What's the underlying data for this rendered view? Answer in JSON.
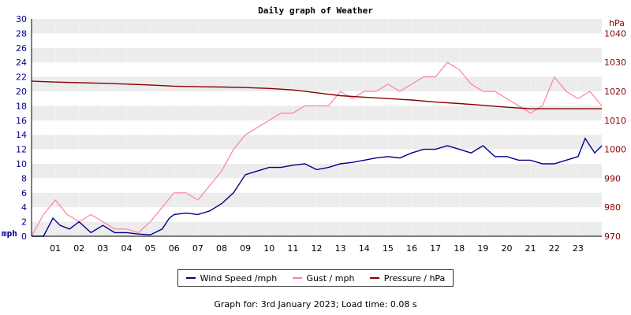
{
  "chart_data": {
    "type": "line",
    "title": "Daily graph of Weather",
    "left_axis": {
      "unit": "mph",
      "ylim": [
        0,
        30
      ],
      "ticks": [
        0,
        2,
        4,
        6,
        8,
        10,
        12,
        14,
        16,
        18,
        20,
        22,
        24,
        26,
        28,
        30
      ]
    },
    "right_axis": {
      "unit": "hPa",
      "ylim": [
        970,
        1045
      ],
      "ticks": [
        970,
        980,
        990,
        1000,
        1010,
        1020,
        1030,
        1040
      ]
    },
    "x_axis": {
      "xlim": [
        0,
        24
      ],
      "tick_labels": [
        "01",
        "02",
        "03",
        "04",
        "05",
        "06",
        "07",
        "08",
        "09",
        "10",
        "11",
        "12",
        "13",
        "14",
        "15",
        "16",
        "17",
        "18",
        "19",
        "20",
        "21",
        "22",
        "23"
      ]
    },
    "grid": true,
    "legend_position": "bottom",
    "series": [
      {
        "name": "Wind Speed /mph",
        "axis": "left",
        "color": "#00008b",
        "x": [
          0,
          0.5,
          0.9,
          1.2,
          1.6,
          2.0,
          2.5,
          3.0,
          3.5,
          4.0,
          4.5,
          5.0,
          5.5,
          5.8,
          6.0,
          6.5,
          7.0,
          7.5,
          8.0,
          8.5,
          9.0,
          9.5,
          10.0,
          10.5,
          11.0,
          11.5,
          12.0,
          12.5,
          13.0,
          13.5,
          14.0,
          14.5,
          15.0,
          15.5,
          16.0,
          16.5,
          17.0,
          17.5,
          18.0,
          18.5,
          19.0,
          19.5,
          20.0,
          20.5,
          21.0,
          21.5,
          22.0,
          22.5,
          23.0,
          23.3,
          23.7,
          24.0
        ],
        "y": [
          0,
          0,
          2.5,
          1.5,
          1.0,
          2.0,
          0.5,
          1.5,
          0.5,
          0.5,
          0.3,
          0.2,
          1.0,
          2.5,
          3.0,
          3.2,
          3.0,
          3.5,
          4.5,
          6.0,
          8.5,
          9.0,
          9.5,
          9.5,
          9.8,
          10.0,
          9.2,
          9.5,
          10.0,
          10.2,
          10.5,
          10.8,
          11.0,
          10.8,
          11.5,
          12.0,
          12.0,
          12.5,
          12.0,
          11.5,
          12.5,
          11.0,
          11.0,
          10.5,
          10.5,
          10.0,
          10.0,
          10.5,
          11.0,
          13.5,
          11.5,
          12.5
        ]
      },
      {
        "name": "Gust / mph",
        "axis": "left",
        "color": "#ff7fa0",
        "x": [
          0,
          0.5,
          1.0,
          1.5,
          2.0,
          2.5,
          3.0,
          3.5,
          4.0,
          4.5,
          5.0,
          5.5,
          6.0,
          6.5,
          7.0,
          7.5,
          8.0,
          8.5,
          9.0,
          9.5,
          10.0,
          10.5,
          11.0,
          11.5,
          12.0,
          12.5,
          13.0,
          13.5,
          14.0,
          14.5,
          15.0,
          15.5,
          16.0,
          16.5,
          17.0,
          17.5,
          18.0,
          18.5,
          19.0,
          19.5,
          20.0,
          20.5,
          21.0,
          21.5,
          22.0,
          22.5,
          23.0,
          23.5,
          24.0
        ],
        "y": [
          0,
          3,
          5,
          3,
          2,
          3,
          2,
          1,
          1,
          0.5,
          2,
          4,
          6,
          6,
          5,
          7,
          9,
          12,
          14,
          15,
          16,
          17,
          17,
          18,
          18,
          18,
          20,
          19,
          20,
          20,
          21,
          20,
          21,
          22,
          22,
          24,
          23,
          21,
          20,
          20,
          19,
          18,
          17,
          18,
          22,
          20,
          19,
          20,
          18
        ]
      },
      {
        "name": "Pressure / hPa",
        "axis": "right",
        "color": "#8b0000",
        "x": [
          0,
          1,
          2,
          3,
          4,
          5,
          6,
          7,
          8,
          9,
          10,
          11,
          12,
          13,
          14,
          15,
          16,
          17,
          18,
          19,
          20,
          21,
          22,
          23,
          24
        ],
        "y": [
          1023.5,
          1023.2,
          1023.0,
          1022.8,
          1022.5,
          1022.2,
          1021.8,
          1021.6,
          1021.5,
          1021.3,
          1021.0,
          1020.5,
          1019.5,
          1018.5,
          1018.0,
          1017.5,
          1017.0,
          1016.3,
          1015.8,
          1015.2,
          1014.5,
          1014.0,
          1014.0,
          1014.0,
          1014.0
        ]
      }
    ]
  },
  "footer": "Graph for: 3rd January 2023; Load time: 0.08 s"
}
